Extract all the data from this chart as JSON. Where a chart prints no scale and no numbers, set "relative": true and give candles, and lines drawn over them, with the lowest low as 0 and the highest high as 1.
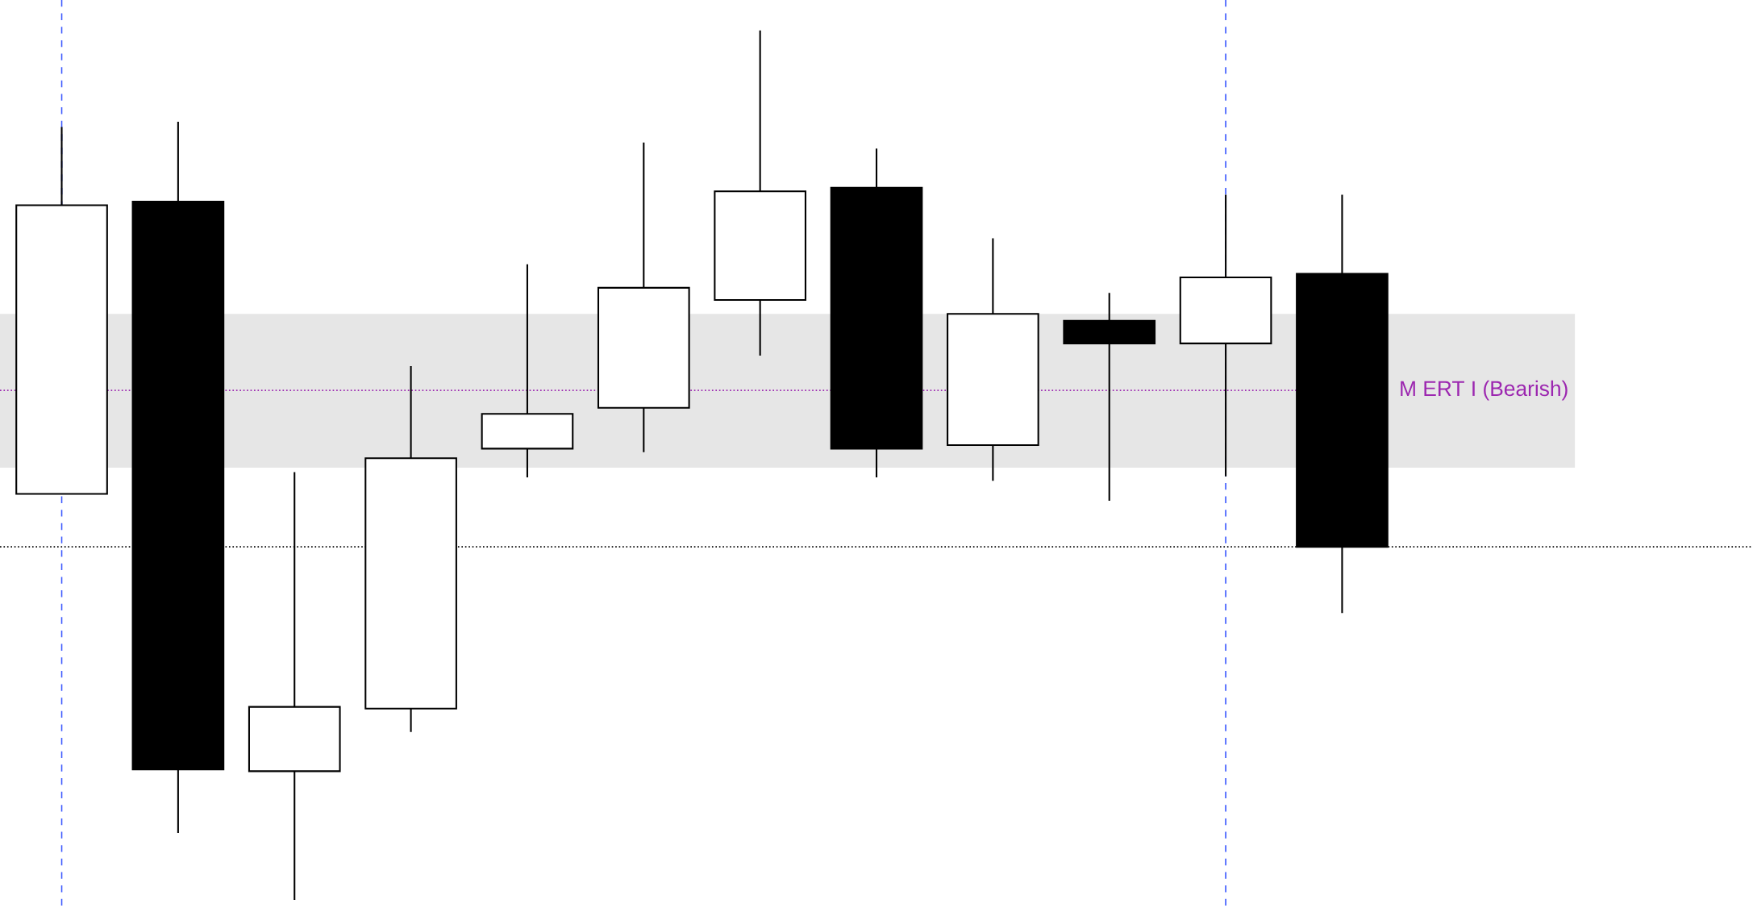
{
  "chart_data": {
    "type": "candlestick",
    "relative": true,
    "categories": [
      null,
      null,
      null,
      null,
      null,
      null,
      null,
      null,
      null,
      null,
      null,
      null
    ],
    "ohlc": [
      [
        0.467,
        0.889,
        0.467,
        0.799
      ],
      [
        0.803,
        0.895,
        0.077,
        0.15
      ],
      [
        0.148,
        0.492,
        0,
        0.222
      ],
      [
        0.22,
        0.614,
        0.193,
        0.508
      ],
      [
        0.519,
        0.731,
        0.486,
        0.559
      ],
      [
        0.566,
        0.871,
        0.515,
        0.704
      ],
      [
        0.69,
        1,
        0.626,
        0.815
      ],
      [
        0.819,
        0.864,
        0.486,
        0.519
      ],
      [
        0.523,
        0.761,
        0.482,
        0.674
      ],
      [
        0.666,
        0.698,
        0.459,
        0.64
      ],
      [
        0.64,
        0.811,
        0.487,
        0.716
      ],
      [
        0.72,
        0.811,
        0.33,
        0.406
      ]
    ],
    "ref_lines": [
      {
        "axis": "y",
        "value": 0.586,
        "label": "M ERT I (Bearish)",
        "color": "#9c27b0",
        "line_style": "dotted"
      },
      {
        "axis": "y",
        "value": 0.406,
        "color": "#000000",
        "line_style": "dotted"
      }
    ],
    "bands": [
      {
        "axis": "y",
        "from": 0.497,
        "to": 0.674,
        "color": "#e6e6e6"
      }
    ]
  }
}
